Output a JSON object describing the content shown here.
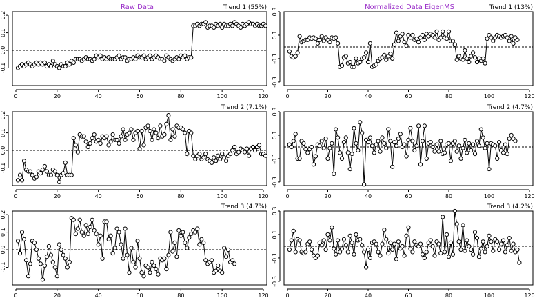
{
  "column_titles": {
    "left": "Raw Data",
    "right": "Normalized Data EigenMS"
  },
  "chart_data": [
    {
      "type": "line",
      "column": "left",
      "row": 0,
      "label": "Trend 1 (55%)",
      "xlim": [
        0,
        120
      ],
      "ylim": [
        -0.2,
        0.22
      ],
      "xticks": [
        0,
        20,
        40,
        60,
        80,
        100,
        120
      ],
      "yticks": [
        -0.1,
        0.0,
        0.1,
        0.2
      ],
      "ytick_labels": [
        "-0.1",
        "0.0",
        "0.1",
        "0.2"
      ],
      "ref_y": 0,
      "values": [
        -0.1,
        -0.09,
        -0.08,
        -0.09,
        -0.08,
        -0.07,
        -0.08,
        -0.09,
        -0.08,
        -0.07,
        -0.08,
        -0.07,
        -0.08,
        -0.07,
        -0.09,
        -0.08,
        -0.09,
        -0.06,
        -0.08,
        -0.09,
        -0.1,
        -0.08,
        -0.09,
        -0.09,
        -0.07,
        -0.08,
        -0.06,
        -0.07,
        -0.05,
        -0.05,
        -0.05,
        -0.06,
        -0.05,
        -0.04,
        -0.05,
        -0.05,
        -0.06,
        -0.05,
        -0.03,
        -0.04,
        -0.03,
        -0.05,
        -0.04,
        -0.05,
        -0.04,
        -0.05,
        -0.05,
        -0.05,
        -0.04,
        -0.03,
        -0.05,
        -0.04,
        -0.04,
        -0.06,
        -0.05,
        -0.05,
        -0.04,
        -0.05,
        -0.03,
        -0.04,
        -0.04,
        -0.03,
        -0.05,
        -0.04,
        -0.03,
        -0.05,
        -0.04,
        -0.03,
        -0.04,
        -0.05,
        -0.05,
        -0.06,
        -0.03,
        -0.04,
        -0.05,
        -0.06,
        -0.05,
        -0.04,
        -0.05,
        -0.03,
        -0.04,
        -0.03,
        -0.05,
        -0.04,
        -0.04,
        0.14,
        0.14,
        0.15,
        0.14,
        0.15,
        0.15,
        0.16,
        0.13,
        0.14,
        0.14,
        0.13,
        0.15,
        0.14,
        0.15,
        0.13,
        0.15,
        0.14,
        0.14,
        0.15,
        0.14,
        0.16,
        0.15,
        0.14,
        0.13,
        0.15,
        0.14,
        0.15,
        0.16,
        0.15,
        0.15,
        0.14,
        0.15,
        0.14,
        0.14,
        0.15,
        0.14
      ]
    },
    {
      "type": "line",
      "column": "left",
      "row": 1,
      "label": "Trend 2 (7.1%)",
      "xlim": [
        0,
        120
      ],
      "ylim": [
        -0.2,
        0.22
      ],
      "xticks": [
        0,
        20,
        40,
        60,
        80,
        100,
        120
      ],
      "yticks": [
        -0.1,
        0.0,
        0.1,
        0.2
      ],
      "ytick_labels": [
        "-0.1",
        "0.0",
        "0.1",
        "0.2"
      ],
      "ref_y": 0,
      "values": [
        -0.17,
        -0.14,
        -0.17,
        -0.06,
        -0.11,
        -0.12,
        -0.12,
        -0.14,
        -0.16,
        -0.15,
        -0.12,
        -0.13,
        -0.11,
        -0.09,
        -0.12,
        -0.14,
        -0.14,
        -0.11,
        -0.12,
        -0.14,
        -0.18,
        -0.14,
        -0.13,
        -0.07,
        -0.14,
        -0.14,
        -0.14,
        0.07,
        0.03,
        -0.01,
        0.09,
        0.08,
        0.08,
        0.05,
        0.02,
        0.04,
        0.07,
        0.09,
        0.05,
        0.06,
        0.04,
        0.08,
        0.07,
        0.08,
        0.03,
        0.05,
        0.09,
        0.06,
        0.06,
        0.04,
        0.08,
        0.12,
        0.06,
        0.09,
        0.1,
        0.12,
        0.06,
        0.1,
        0.11,
        0.01,
        0.11,
        0.03,
        0.13,
        0.14,
        0.11,
        0.06,
        0.12,
        0.1,
        0.07,
        0.14,
        0.08,
        0.09,
        0.15,
        0.2,
        0.06,
        0.12,
        0.08,
        0.14,
        0.13,
        0.13,
        0.12,
        0.1,
        -0.02,
        0.11,
        0.1,
        -0.03,
        -0.05,
        -0.03,
        -0.02,
        -0.05,
        -0.04,
        -0.02,
        -0.05,
        -0.06,
        -0.07,
        -0.04,
        -0.06,
        -0.03,
        -0.05,
        -0.02,
        -0.04,
        -0.06,
        -0.03,
        -0.02,
        0.0,
        0.02,
        -0.02,
        -0.01,
        0.01,
        0.0,
        -0.01,
        0.01,
        -0.03,
        0.01,
        0.02,
        0.0,
        0.02,
        0.03,
        -0.02,
        -0.02,
        -0.03
      ]
    },
    {
      "type": "line",
      "column": "left",
      "row": 2,
      "label": "Trend 3 (4.7%)",
      "xlim": [
        0,
        120
      ],
      "ylim": [
        -0.2,
        0.22
      ],
      "xticks": [
        0,
        20,
        40,
        60,
        80,
        100,
        120
      ],
      "yticks": [
        -0.1,
        0.0,
        0.1,
        0.2
      ],
      "ytick_labels": [
        "-0.1",
        "0.0",
        "0.1",
        "0.2"
      ],
      "ref_y": 0,
      "values": [
        0.05,
        -0.02,
        0.1,
        0.06,
        -0.06,
        -0.15,
        -0.08,
        0.05,
        0.04,
        0.0,
        -0.05,
        -0.08,
        -0.17,
        -0.09,
        -0.04,
        0.02,
        -0.03,
        -0.07,
        -0.1,
        -0.15,
        0.03,
        0.0,
        -0.03,
        -0.05,
        -0.1,
        -0.07,
        0.18,
        0.17,
        0.09,
        0.12,
        0.17,
        0.1,
        0.08,
        0.14,
        0.09,
        0.13,
        0.17,
        0.11,
        0.09,
        0.03,
        0.08,
        -0.05,
        0.16,
        0.16,
        0.06,
        0.08,
        -0.02,
        0.01,
        0.12,
        0.1,
        0.03,
        -0.05,
        0.12,
        -0.03,
        -0.13,
        0.01,
        -0.07,
        -0.1,
        0.05,
        -0.05,
        -0.13,
        -0.15,
        -0.09,
        -0.1,
        -0.13,
        -0.07,
        -0.09,
        -0.11,
        -0.14,
        -0.05,
        -0.06,
        -0.05,
        -0.11,
        -0.03,
        0.1,
        -0.01,
        0.04,
        -0.04,
        0.11,
        0.08,
        0.1,
        0.04,
        0.01,
        0.07,
        0.09,
        0.11,
        0.1,
        0.12,
        0.03,
        0.06,
        0.04,
        -0.06,
        -0.08,
        -0.07,
        -0.06,
        -0.13,
        -0.12,
        -0.09,
        -0.12,
        -0.13,
        0.01,
        -0.04,
        0.0,
        -0.07,
        -0.06,
        -0.08
      ]
    },
    {
      "type": "line",
      "column": "right",
      "row": 0,
      "label": "Trend 1 (13%)",
      "xlim": [
        0,
        120
      ],
      "ylim": [
        -0.33,
        0.3
      ],
      "xticks": [
        0,
        20,
        40,
        60,
        80,
        100,
        120
      ],
      "yticks": [
        -0.3,
        -0.1,
        0.1,
        0.3
      ],
      "ytick_labels": [
        "-0.3",
        "-0.1",
        "0.1",
        "0.3"
      ],
      "ref_y": 0,
      "values": [
        -0.04,
        -0.08,
        -0.09,
        -0.08,
        -0.05,
        0.09,
        0.04,
        0.05,
        0.06,
        0.06,
        0.08,
        0.07,
        0.08,
        0.07,
        0.03,
        0.06,
        0.09,
        0.05,
        0.08,
        0.06,
        0.04,
        0.08,
        0.07,
        0.08,
        0.03,
        -0.17,
        -0.16,
        -0.09,
        -0.08,
        -0.14,
        -0.13,
        -0.17,
        -0.17,
        -0.1,
        -0.14,
        -0.13,
        -0.1,
        -0.09,
        -0.05,
        -0.13,
        0.03,
        -0.17,
        -0.16,
        -0.15,
        -0.12,
        -0.1,
        -0.09,
        -0.07,
        -0.11,
        -0.08,
        -0.06,
        -0.1,
        0.02,
        0.12,
        0.05,
        0.09,
        0.11,
        0.04,
        0.01,
        0.1,
        0.08,
        0.1,
        0.06,
        0.07,
        0.04,
        0.08,
        0.1,
        0.06,
        0.11,
        0.09,
        0.11,
        0.1,
        0.08,
        0.13,
        0.06,
        0.08,
        0.13,
        0.08,
        0.07,
        0.13,
        0.05,
        0.05,
        0.02,
        -0.11,
        -0.08,
        -0.1,
        -0.11,
        -0.03,
        -0.1,
        -0.13,
        -0.08,
        -0.05,
        -0.09,
        -0.13,
        -0.1,
        -0.12,
        -0.1,
        -0.14,
        0.07,
        0.1,
        0.08,
        0.05,
        0.08,
        0.1,
        0.09,
        0.08,
        0.09,
        0.1,
        0.08,
        0.05,
        0.09,
        0.03,
        0.08,
        0.06
      ]
    },
    {
      "type": "line",
      "column": "right",
      "row": 1,
      "label": "Trend 2 (4.7%)",
      "xlim": [
        0,
        120
      ],
      "ylim": [
        -0.33,
        0.3
      ],
      "xticks": [
        0,
        20,
        40,
        60,
        80,
        100,
        120
      ],
      "yticks": [
        -0.3,
        -0.1,
        0.1,
        0.3
      ],
      "ytick_labels": [
        "-0.3",
        "-0.1",
        "0.1",
        "0.3"
      ],
      "ref_y": 0,
      "values": [
        0.02,
        0.0,
        0.05,
        0.11,
        -0.1,
        -0.1,
        0.05,
        0.03,
        -0.02,
        -0.05,
        -0.02,
        0.0,
        -0.15,
        -0.08,
        0.02,
        0.01,
        0.05,
        -0.01,
        0.07,
        -0.1,
        -0.01,
        0.03,
        -0.23,
        0.15,
        0.08,
        -0.05,
        -0.1,
        0.04,
        0.08,
        -0.05,
        -0.19,
        -0.06,
        0.16,
        0.03,
        -0.03,
        0.21,
        0.12,
        -0.32,
        0.06,
        0.04,
        0.08,
        0.01,
        -0.05,
        0.02,
        0.05,
        -0.04,
        0.08,
        0.03,
        -0.01,
        0.15,
        0.05,
        -0.17,
        0.04,
        0.01,
        0.07,
        0.11,
        0.0,
        0.02,
        -0.08,
        0.06,
        0.16,
        0.05,
        -0.03,
        0.01,
        0.18,
        -0.15,
        0.05,
        0.18,
        -0.1,
        0.03,
        0.04,
        0.0,
        -0.04,
        0.02,
        -0.04,
        0.05,
        -0.06,
        -0.05,
        0.02,
        0.03,
        -0.12,
        0.03,
        0.05,
        -0.04,
        0.01,
        -0.1,
        -0.01,
        0.06,
        -0.05,
        0.03,
        -0.03,
        0.02,
        -0.06,
        0.05,
        0.01,
        0.15,
        0.08,
        -0.01,
        0.03,
        -0.19,
        0.03,
        0.02,
        0.01,
        -0.1,
        0.04,
        -0.03,
        -0.05,
        0.02,
        -0.06,
        0.07,
        0.1,
        0.07,
        0.05
      ]
    },
    {
      "type": "line",
      "column": "right",
      "row": 2,
      "label": "Trend 3 (4.2%)",
      "xlim": [
        0,
        120
      ],
      "ylim": [
        -0.33,
        0.3
      ],
      "xticks": [
        0,
        20,
        40,
        60,
        80,
        100,
        120
      ],
      "yticks": [
        -0.3,
        -0.1,
        0.1,
        0.3
      ],
      "ytick_labels": [
        "-0.3",
        "-0.1",
        "0.1",
        "0.3"
      ],
      "ref_y": 0,
      "values": [
        -0.03,
        0.05,
        0.13,
        -0.05,
        0.06,
        0.05,
        -0.05,
        -0.06,
        -0.05,
        0.02,
        0.04,
        -0.03,
        -0.08,
        -0.1,
        -0.08,
        0.03,
        0.01,
        0.05,
        -0.03,
        0.1,
        0.05,
        0.16,
        -0.02,
        -0.07,
        0.05,
        -0.05,
        -0.02,
        0.06,
        0.01,
        -0.05,
        0.09,
        0.03,
        -0.07,
        0.1,
        0.05,
        0.06,
        0.01,
        -0.05,
        -0.18,
        -0.03,
        -0.1,
        0.03,
        0.04,
        0.02,
        -0.05,
        -0.08,
        0.02,
        0.14,
        0.06,
        -0.06,
        0.03,
        -0.03,
        0.02,
        -0.11,
        0.04,
        -0.02,
        0.0,
        -0.08,
        0.09,
        0.16,
        -0.02,
        -0.05,
        0.04,
        0.01,
        0.0,
        0.02,
        -0.07,
        -0.1,
        -0.05,
        0.03,
        0.05,
        0.0,
        -0.08,
        0.04,
        0.02,
        -0.06,
        0.25,
        -0.05,
        0.1,
        -0.09,
        0.03,
        -0.07,
        0.3,
        0.19,
        0.04,
        -0.03,
        0.18,
        -0.04,
        0.05,
        0.0,
        -0.03,
        -0.07,
        0.12,
        0.07,
        -0.09,
        -0.02,
        0.04,
        -0.05,
        0.0,
        0.09,
        0.04,
        -0.04,
        0.06,
        0.04,
        -0.03,
        0.02,
        0.05,
        -0.05,
        0.01,
        0.07,
        -0.04,
        0.02,
        -0.05,
        -0.03,
        -0.14
      ]
    }
  ]
}
